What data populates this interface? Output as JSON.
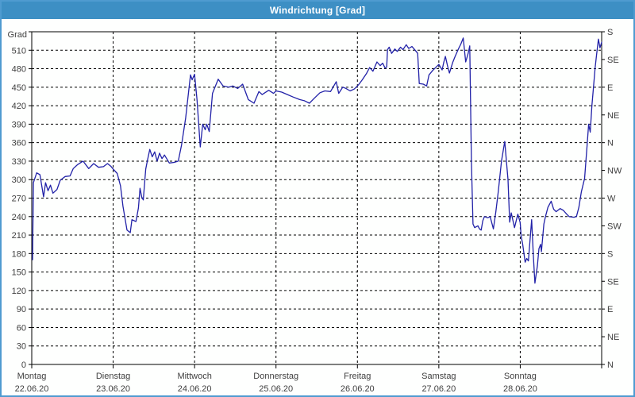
{
  "window": {
    "title": "Windrichtung [Grad]",
    "titlebar_color": "#3d8fc4",
    "border_color": "#4f9bd0"
  },
  "chart_data": {
    "type": "line",
    "title": "Windrichtung [Grad]",
    "grid": "dashed",
    "line_color": "#2222a8",
    "axis_color": "#000000",
    "label_color": "#404040",
    "y_axis_left": {
      "label": "Grad",
      "min": 0,
      "max": 540,
      "tick_step": 30,
      "tick_labels": [
        "0",
        "30",
        "60",
        "90",
        "120",
        "150",
        "180",
        "210",
        "240",
        "270",
        "300",
        "330",
        "360",
        "390",
        "420",
        "450",
        "480",
        "510"
      ]
    },
    "y_axis_right": {
      "tick_step_degrees": 45,
      "labels_bottom_to_top": [
        "N",
        "NE",
        "E",
        "SE",
        "S",
        "SW",
        "W",
        "NW",
        "N",
        "NE",
        "E",
        "SE",
        "S"
      ]
    },
    "x_axis": {
      "days": [
        {
          "name": "Montag",
          "date": "22.06.20"
        },
        {
          "name": "Dienstag",
          "date": "23.06.20"
        },
        {
          "name": "Mittwoch",
          "date": "24.06.20"
        },
        {
          "name": "Donnerstag",
          "date": "25.06.20"
        },
        {
          "name": "Freitag",
          "date": "26.06.20"
        },
        {
          "name": "Samstag",
          "date": "27.06.20"
        },
        {
          "name": "Sonntag",
          "date": "28.06.20"
        }
      ]
    },
    "series": [
      {
        "name": "Windrichtung",
        "unit": "Grad",
        "points": [
          [
            0.01,
            170
          ],
          [
            0.02,
            295
          ],
          [
            0.06,
            311
          ],
          [
            0.1,
            308
          ],
          [
            0.145,
            272
          ],
          [
            0.17,
            295
          ],
          [
            0.2,
            282
          ],
          [
            0.23,
            291
          ],
          [
            0.26,
            278
          ],
          [
            0.31,
            284
          ],
          [
            0.35,
            299
          ],
          [
            0.41,
            305
          ],
          [
            0.47,
            306
          ],
          [
            0.51,
            318
          ],
          [
            0.56,
            324
          ],
          [
            0.63,
            330
          ],
          [
            0.7,
            318
          ],
          [
            0.76,
            326
          ],
          [
            0.82,
            320
          ],
          [
            0.88,
            321
          ],
          [
            0.93,
            326
          ],
          [
            0.97,
            322
          ],
          [
            1.0,
            317
          ],
          [
            1.05,
            310
          ],
          [
            1.09,
            290
          ],
          [
            1.12,
            257
          ],
          [
            1.17,
            218
          ],
          [
            1.21,
            214
          ],
          [
            1.23,
            235
          ],
          [
            1.28,
            232
          ],
          [
            1.31,
            254
          ],
          [
            1.33,
            286
          ],
          [
            1.35,
            272
          ],
          [
            1.37,
            267
          ],
          [
            1.4,
            317
          ],
          [
            1.42,
            331
          ],
          [
            1.45,
            349
          ],
          [
            1.48,
            337
          ],
          [
            1.51,
            345
          ],
          [
            1.54,
            330
          ],
          [
            1.57,
            343
          ],
          [
            1.6,
            334
          ],
          [
            1.63,
            340
          ],
          [
            1.69,
            327
          ],
          [
            1.75,
            328
          ],
          [
            1.8,
            330
          ],
          [
            1.84,
            356
          ],
          [
            1.89,
            400
          ],
          [
            1.95,
            470
          ],
          [
            1.97,
            462
          ],
          [
            2.0,
            471
          ],
          [
            2.03,
            430
          ],
          [
            2.07,
            353
          ],
          [
            2.1,
            390
          ],
          [
            2.13,
            381
          ],
          [
            2.15,
            390
          ],
          [
            2.18,
            378
          ],
          [
            2.22,
            440
          ],
          [
            2.29,
            463
          ],
          [
            2.35,
            452
          ],
          [
            2.42,
            450
          ],
          [
            2.47,
            452
          ],
          [
            2.53,
            448
          ],
          [
            2.59,
            455
          ],
          [
            2.66,
            430
          ],
          [
            2.73,
            424
          ],
          [
            2.79,
            443
          ],
          [
            2.83,
            438
          ],
          [
            2.91,
            445
          ],
          [
            2.97,
            440
          ],
          [
            3.0,
            444
          ],
          [
            3.07,
            442
          ],
          [
            3.14,
            438
          ],
          [
            3.21,
            434
          ],
          [
            3.29,
            430
          ],
          [
            3.35,
            428
          ],
          [
            3.41,
            424
          ],
          [
            3.47,
            432
          ],
          [
            3.54,
            441
          ],
          [
            3.6,
            444
          ],
          [
            3.67,
            443
          ],
          [
            3.74,
            459
          ],
          [
            3.77,
            440
          ],
          [
            3.82,
            450
          ],
          [
            3.86,
            448
          ],
          [
            3.91,
            444
          ],
          [
            3.96,
            447
          ],
          [
            4.0,
            452
          ],
          [
            4.02,
            455
          ],
          [
            4.06,
            462
          ],
          [
            4.11,
            472
          ],
          [
            4.15,
            482
          ],
          [
            4.19,
            476
          ],
          [
            4.24,
            491
          ],
          [
            4.28,
            485
          ],
          [
            4.31,
            489
          ],
          [
            4.34,
            481
          ],
          [
            4.36,
            483
          ],
          [
            4.37,
            511
          ],
          [
            4.39,
            515
          ],
          [
            4.42,
            505
          ],
          [
            4.46,
            512
          ],
          [
            4.49,
            508
          ],
          [
            4.53,
            515
          ],
          [
            4.56,
            511
          ],
          [
            4.6,
            519
          ],
          [
            4.63,
            513
          ],
          [
            4.67,
            516
          ],
          [
            4.71,
            510
          ],
          [
            4.74,
            505
          ],
          [
            4.76,
            456
          ],
          [
            4.81,
            455
          ],
          [
            4.85,
            452
          ],
          [
            4.88,
            470
          ],
          [
            4.93,
            478
          ],
          [
            4.97,
            483
          ],
          [
            5.0,
            487
          ],
          [
            5.04,
            478
          ],
          [
            5.06,
            490
          ],
          [
            5.08,
            500
          ],
          [
            5.11,
            483
          ],
          [
            5.13,
            473
          ],
          [
            5.17,
            490
          ],
          [
            5.2,
            500
          ],
          [
            5.24,
            512
          ],
          [
            5.27,
            520
          ],
          [
            5.3,
            530
          ],
          [
            5.33,
            491
          ],
          [
            5.36,
            505
          ],
          [
            5.38,
            517
          ],
          [
            5.4,
            330
          ],
          [
            5.42,
            228
          ],
          [
            5.44,
            222
          ],
          [
            5.48,
            225
          ],
          [
            5.5,
            220
          ],
          [
            5.52,
            218
          ],
          [
            5.54,
            233
          ],
          [
            5.56,
            240
          ],
          [
            5.6,
            238
          ],
          [
            5.63,
            240
          ],
          [
            5.67,
            220
          ],
          [
            5.7,
            248
          ],
          [
            5.73,
            280
          ],
          [
            5.77,
            330
          ],
          [
            5.81,
            362
          ],
          [
            5.83,
            330
          ],
          [
            5.85,
            300
          ],
          [
            5.87,
            231
          ],
          [
            5.89,
            246
          ],
          [
            5.93,
            222
          ],
          [
            5.97,
            244
          ],
          [
            6.0,
            230
          ],
          [
            6.01,
            209
          ],
          [
            6.03,
            195
          ],
          [
            6.06,
            166
          ],
          [
            6.08,
            172
          ],
          [
            6.1,
            168
          ],
          [
            6.14,
            235
          ],
          [
            6.16,
            180
          ],
          [
            6.18,
            132
          ],
          [
            6.21,
            160
          ],
          [
            6.23,
            188
          ],
          [
            6.25,
            195
          ],
          [
            6.26,
            183
          ],
          [
            6.29,
            228
          ],
          [
            6.31,
            240
          ],
          [
            6.34,
            255
          ],
          [
            6.38,
            265
          ],
          [
            6.41,
            252
          ],
          [
            6.44,
            248
          ],
          [
            6.49,
            253
          ],
          [
            6.53,
            250
          ],
          [
            6.57,
            244
          ],
          [
            6.6,
            240
          ],
          [
            6.66,
            239
          ],
          [
            6.69,
            240
          ],
          [
            6.72,
            255
          ],
          [
            6.75,
            280
          ],
          [
            6.79,
            302
          ],
          [
            6.82,
            353
          ],
          [
            6.84,
            390
          ],
          [
            6.86,
            377
          ],
          [
            6.88,
            420
          ],
          [
            6.9,
            450
          ],
          [
            6.92,
            482
          ],
          [
            6.94,
            505
          ],
          [
            6.96,
            528
          ],
          [
            6.98,
            514
          ],
          [
            7.0,
            523
          ]
        ]
      }
    ]
  }
}
